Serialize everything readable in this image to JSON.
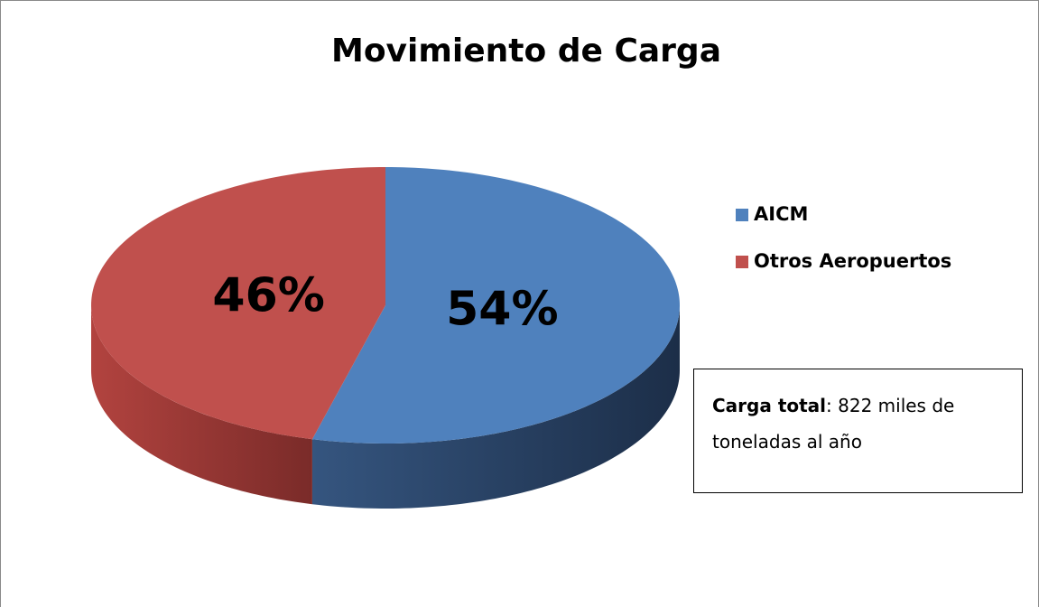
{
  "chart_data": {
    "type": "pie",
    "title": "Movimiento de Carga",
    "categories": [
      "AICM",
      "Otros Aeropuertos"
    ],
    "values": [
      54,
      46
    ],
    "value_labels": [
      "54%",
      "46%"
    ],
    "colors": [
      "#4f81bd",
      "#c0504d"
    ],
    "legend": "right",
    "annotation": {
      "label": "Carga total",
      "text": ": 822 miles de toneladas al año"
    }
  }
}
